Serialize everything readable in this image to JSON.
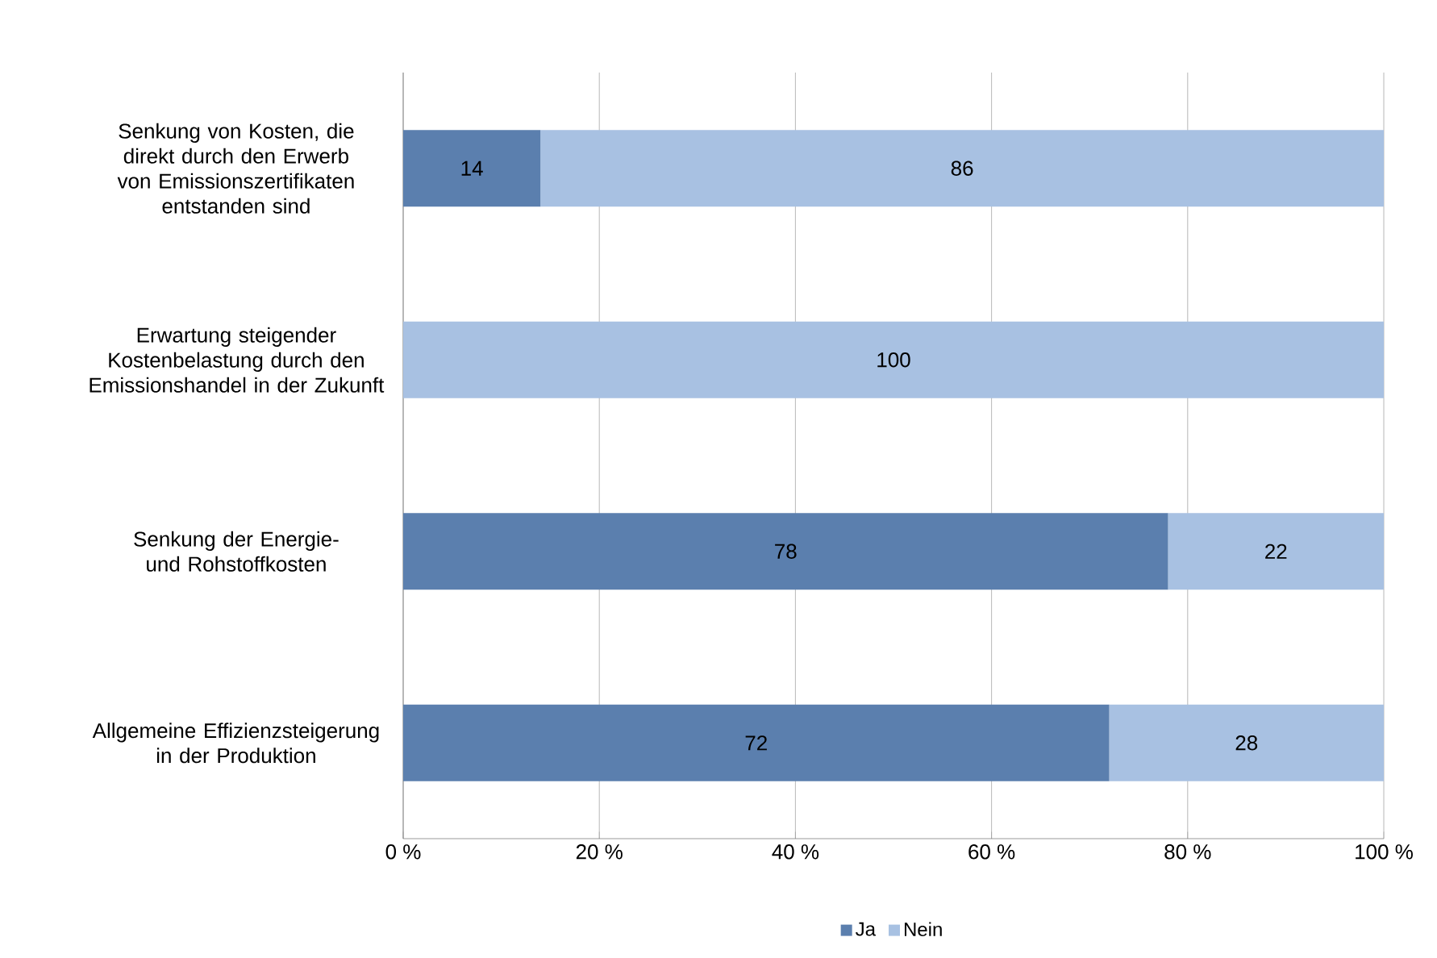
{
  "chart_data": {
    "type": "bar",
    "orientation": "horizontal",
    "stacked": true,
    "categories": [
      "Senkung von Kosten, die direkt durch den Erwerb von Emissionszertifikaten entstanden sind",
      "Erwartung steigender Kostenbelastung durch den Emissionshandel in der Zukunft",
      "Senkung der Energie- und Rohstoffkosten",
      "Allgemeine Effizienzsteigerung in der Produktion"
    ],
    "series": [
      {
        "name": "Ja",
        "color": "#5b7fae",
        "values": [
          14,
          0,
          78,
          72
        ],
        "value_labels": [
          "14",
          null,
          "78",
          "72"
        ]
      },
      {
        "name": "Nein",
        "color": "#a8c1e2",
        "values": [
          86,
          100,
          22,
          28
        ],
        "value_labels": [
          "86",
          "100",
          "22",
          "28"
        ]
      }
    ],
    "xlim": [
      0,
      100
    ],
    "xticks": [
      {
        "value": 0,
        "label": "0 %"
      },
      {
        "value": 20,
        "label": "20 %"
      },
      {
        "value": 40,
        "label": "40 %"
      },
      {
        "value": 60,
        "label": "60 %"
      },
      {
        "value": 80,
        "label": "80 %"
      },
      {
        "value": 100,
        "label": "100 %"
      }
    ],
    "grid": "x",
    "legend": "bottom"
  }
}
